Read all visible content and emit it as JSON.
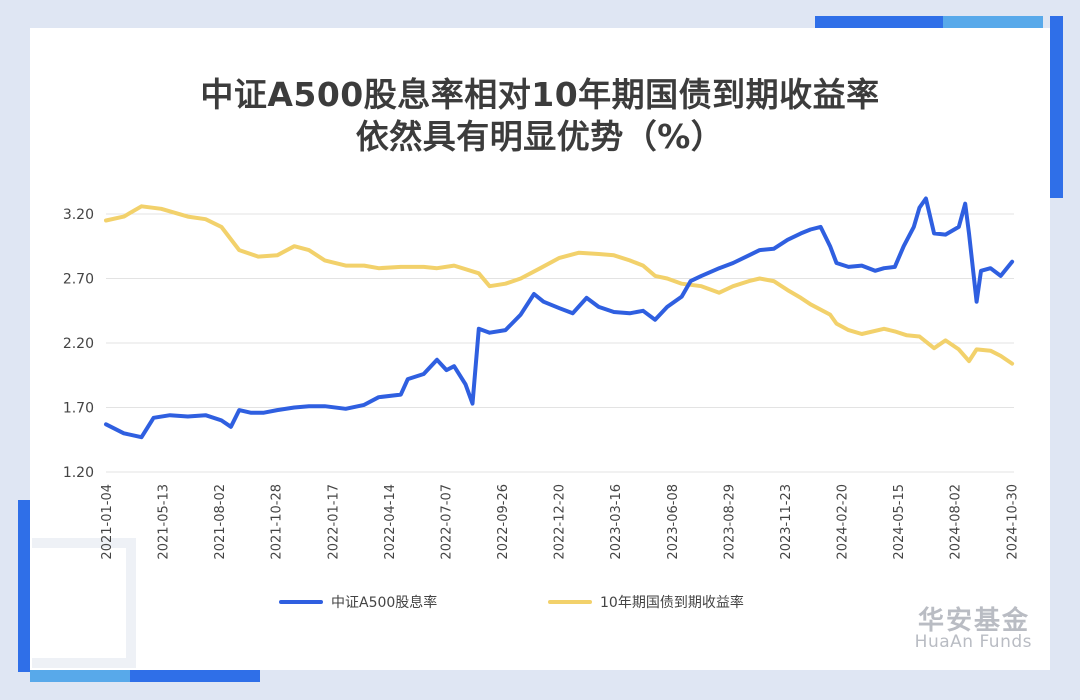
{
  "title": {
    "line1": "中证A500股息率相对10年期国债到期收益率",
    "line2": "依然具有明显优势（%）"
  },
  "brand": {
    "cn": "华安基金",
    "en": "HuaAn Funds"
  },
  "colors": {
    "a500": "#2f5fe0",
    "bond": "#f2d16b",
    "grid": "#e3e3e3",
    "deco_blue": "#2f6fe8",
    "deco_light": "#58a9ea"
  },
  "chart_data": {
    "type": "line",
    "title": "中证A500股息率相对10年期国债到期收益率依然具有明显优势（%）",
    "xlabel": "",
    "ylabel": "",
    "ylim": [
      1.2,
      3.2
    ],
    "yticks": [
      "1.20",
      "1.70",
      "2.20",
      "2.70",
      "3.20"
    ],
    "x_tick_labels": [
      "2021-01-04",
      "2021-05-13",
      "2021-08-02",
      "2021-10-28",
      "2022-01-17",
      "2022-04-14",
      "2022-07-07",
      "2022-09-26",
      "2022-12-20",
      "2023-03-16",
      "2023-06-08",
      "2023-08-29",
      "2023-11-23",
      "2024-02-20",
      "2024-05-15",
      "2024-08-02",
      "2024-10-30"
    ],
    "grid": true,
    "legend_position": "bottom",
    "series": [
      {
        "name": "中证A500股息率",
        "points": [
          [
            "2021-01-04",
            1.57
          ],
          [
            "2021-02-01",
            1.5
          ],
          [
            "2021-03-01",
            1.47
          ],
          [
            "2021-03-20",
            1.62
          ],
          [
            "2021-04-15",
            1.64
          ],
          [
            "2021-05-13",
            1.63
          ],
          [
            "2021-06-10",
            1.64
          ],
          [
            "2021-07-05",
            1.6
          ],
          [
            "2021-07-20",
            1.55
          ],
          [
            "2021-08-02",
            1.68
          ],
          [
            "2021-08-20",
            1.66
          ],
          [
            "2021-09-10",
            1.66
          ],
          [
            "2021-10-01",
            1.68
          ],
          [
            "2021-10-28",
            1.7
          ],
          [
            "2021-11-20",
            1.71
          ],
          [
            "2021-12-15",
            1.71
          ],
          [
            "2022-01-17",
            1.69
          ],
          [
            "2022-02-15",
            1.72
          ],
          [
            "2022-03-10",
            1.78
          ],
          [
            "2022-04-14",
            1.8
          ],
          [
            "2022-04-25",
            1.92
          ],
          [
            "2022-05-20",
            1.96
          ],
          [
            "2022-06-10",
            2.07
          ],
          [
            "2022-06-25",
            1.99
          ],
          [
            "2022-07-07",
            2.02
          ],
          [
            "2022-07-25",
            1.88
          ],
          [
            "2022-08-05",
            1.73
          ],
          [
            "2022-08-15",
            2.31
          ],
          [
            "2022-09-01",
            2.28
          ],
          [
            "2022-09-26",
            2.3
          ],
          [
            "2022-10-20",
            2.42
          ],
          [
            "2022-11-10",
            2.58
          ],
          [
            "2022-11-25",
            2.52
          ],
          [
            "2022-12-20",
            2.47
          ],
          [
            "2023-01-10",
            2.43
          ],
          [
            "2023-02-01",
            2.55
          ],
          [
            "2023-02-20",
            2.48
          ],
          [
            "2023-03-16",
            2.44
          ],
          [
            "2023-04-10",
            2.43
          ],
          [
            "2023-05-01",
            2.45
          ],
          [
            "2023-05-20",
            2.38
          ],
          [
            "2023-06-08",
            2.48
          ],
          [
            "2023-07-01",
            2.56
          ],
          [
            "2023-07-15",
            2.68
          ],
          [
            "2023-08-01",
            2.72
          ],
          [
            "2023-08-29",
            2.78
          ],
          [
            "2023-09-20",
            2.82
          ],
          [
            "2023-10-15",
            2.88
          ],
          [
            "2023-11-01",
            2.92
          ],
          [
            "2023-11-23",
            2.93
          ],
          [
            "2023-12-15",
            3.0
          ],
          [
            "2024-01-05",
            3.05
          ],
          [
            "2024-01-20",
            3.08
          ],
          [
            "2024-02-05",
            3.1
          ],
          [
            "2024-02-20",
            2.95
          ],
          [
            "2024-03-01",
            2.82
          ],
          [
            "2024-03-20",
            2.79
          ],
          [
            "2024-04-10",
            2.8
          ],
          [
            "2024-05-01",
            2.76
          ],
          [
            "2024-05-15",
            2.78
          ],
          [
            "2024-06-01",
            2.79
          ],
          [
            "2024-06-15",
            2.95
          ],
          [
            "2024-07-01",
            3.1
          ],
          [
            "2024-07-10",
            3.25
          ],
          [
            "2024-07-20",
            3.32
          ],
          [
            "2024-08-02",
            3.05
          ],
          [
            "2024-08-20",
            3.04
          ],
          [
            "2024-09-10",
            3.1
          ],
          [
            "2024-09-20",
            3.28
          ],
          [
            "2024-09-26",
            3.05
          ],
          [
            "2024-10-08",
            2.52
          ],
          [
            "2024-10-15",
            2.76
          ],
          [
            "2024-10-30",
            2.78
          ],
          [
            "2024-11-15",
            2.72
          ],
          [
            "2024-12-03",
            2.83
          ]
        ]
      },
      {
        "name": "10年期国债到期收益率",
        "points": [
          [
            "2021-01-04",
            3.15
          ],
          [
            "2021-02-01",
            3.18
          ],
          [
            "2021-03-01",
            3.26
          ],
          [
            "2021-04-01",
            3.24
          ],
          [
            "2021-05-13",
            3.18
          ],
          [
            "2021-06-10",
            3.16
          ],
          [
            "2021-07-05",
            3.1
          ],
          [
            "2021-08-02",
            2.92
          ],
          [
            "2021-09-01",
            2.87
          ],
          [
            "2021-10-01",
            2.88
          ],
          [
            "2021-10-28",
            2.95
          ],
          [
            "2021-11-20",
            2.92
          ],
          [
            "2021-12-15",
            2.84
          ],
          [
            "2022-01-17",
            2.8
          ],
          [
            "2022-02-15",
            2.8
          ],
          [
            "2022-03-10",
            2.78
          ],
          [
            "2022-04-14",
            2.79
          ],
          [
            "2022-05-20",
            2.79
          ],
          [
            "2022-06-10",
            2.78
          ],
          [
            "2022-07-07",
            2.8
          ],
          [
            "2022-08-15",
            2.74
          ],
          [
            "2022-09-01",
            2.64
          ],
          [
            "2022-09-26",
            2.66
          ],
          [
            "2022-10-20",
            2.7
          ],
          [
            "2022-11-20",
            2.78
          ],
          [
            "2022-12-20",
            2.86
          ],
          [
            "2023-01-20",
            2.9
          ],
          [
            "2023-02-20",
            2.89
          ],
          [
            "2023-03-16",
            2.88
          ],
          [
            "2023-04-10",
            2.84
          ],
          [
            "2023-05-01",
            2.8
          ],
          [
            "2023-05-20",
            2.72
          ],
          [
            "2023-06-08",
            2.7
          ],
          [
            "2023-07-01",
            2.66
          ],
          [
            "2023-08-01",
            2.64
          ],
          [
            "2023-08-29",
            2.59
          ],
          [
            "2023-09-20",
            2.64
          ],
          [
            "2023-10-15",
            2.68
          ],
          [
            "2023-11-01",
            2.7
          ],
          [
            "2023-11-23",
            2.68
          ],
          [
            "2023-12-15",
            2.61
          ],
          [
            "2024-01-05",
            2.55
          ],
          [
            "2024-01-20",
            2.5
          ],
          [
            "2024-02-20",
            2.42
          ],
          [
            "2024-03-01",
            2.35
          ],
          [
            "2024-03-20",
            2.3
          ],
          [
            "2024-04-10",
            2.27
          ],
          [
            "2024-05-15",
            2.31
          ],
          [
            "2024-06-01",
            2.29
          ],
          [
            "2024-06-20",
            2.26
          ],
          [
            "2024-07-10",
            2.25
          ],
          [
            "2024-08-02",
            2.16
          ],
          [
            "2024-08-20",
            2.22
          ],
          [
            "2024-09-10",
            2.15
          ],
          [
            "2024-09-26",
            2.06
          ],
          [
            "2024-10-08",
            2.15
          ],
          [
            "2024-10-30",
            2.14
          ],
          [
            "2024-11-15",
            2.1
          ],
          [
            "2024-12-03",
            2.04
          ]
        ]
      }
    ]
  }
}
